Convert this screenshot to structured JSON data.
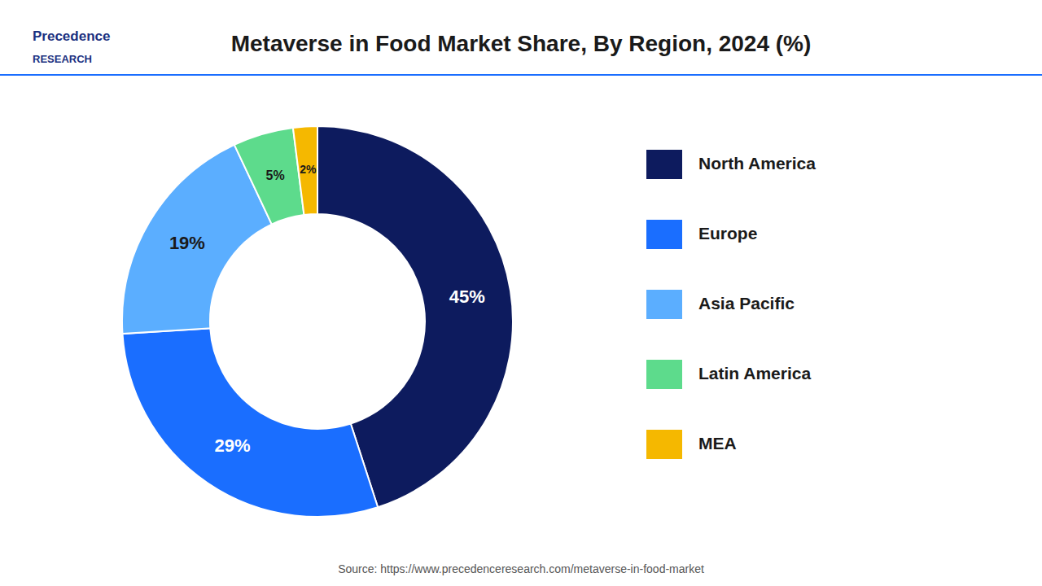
{
  "chart_data": {
    "type": "donut",
    "title": "Metaverse in Food Market Share, By Region, 2024 (%)",
    "categories": [
      "North America",
      "Europe",
      "Asia Pacific",
      "Latin America",
      "MEA"
    ],
    "values": [
      45,
      29,
      19,
      5,
      2
    ],
    "value_labels": [
      "45%",
      "29%",
      "19%",
      "5%",
      "2%"
    ],
    "colors": [
      "#0d1b5e",
      "#1a6eff",
      "#5baeff",
      "#5ddb8c",
      "#f5b800"
    ],
    "data_labels": true,
    "legend": "right",
    "annotations": [
      "Source: https://www.precedenceresearch.com/metaverse-in-food-market",
      "Precedence",
      "RESEARCH"
    ]
  }
}
